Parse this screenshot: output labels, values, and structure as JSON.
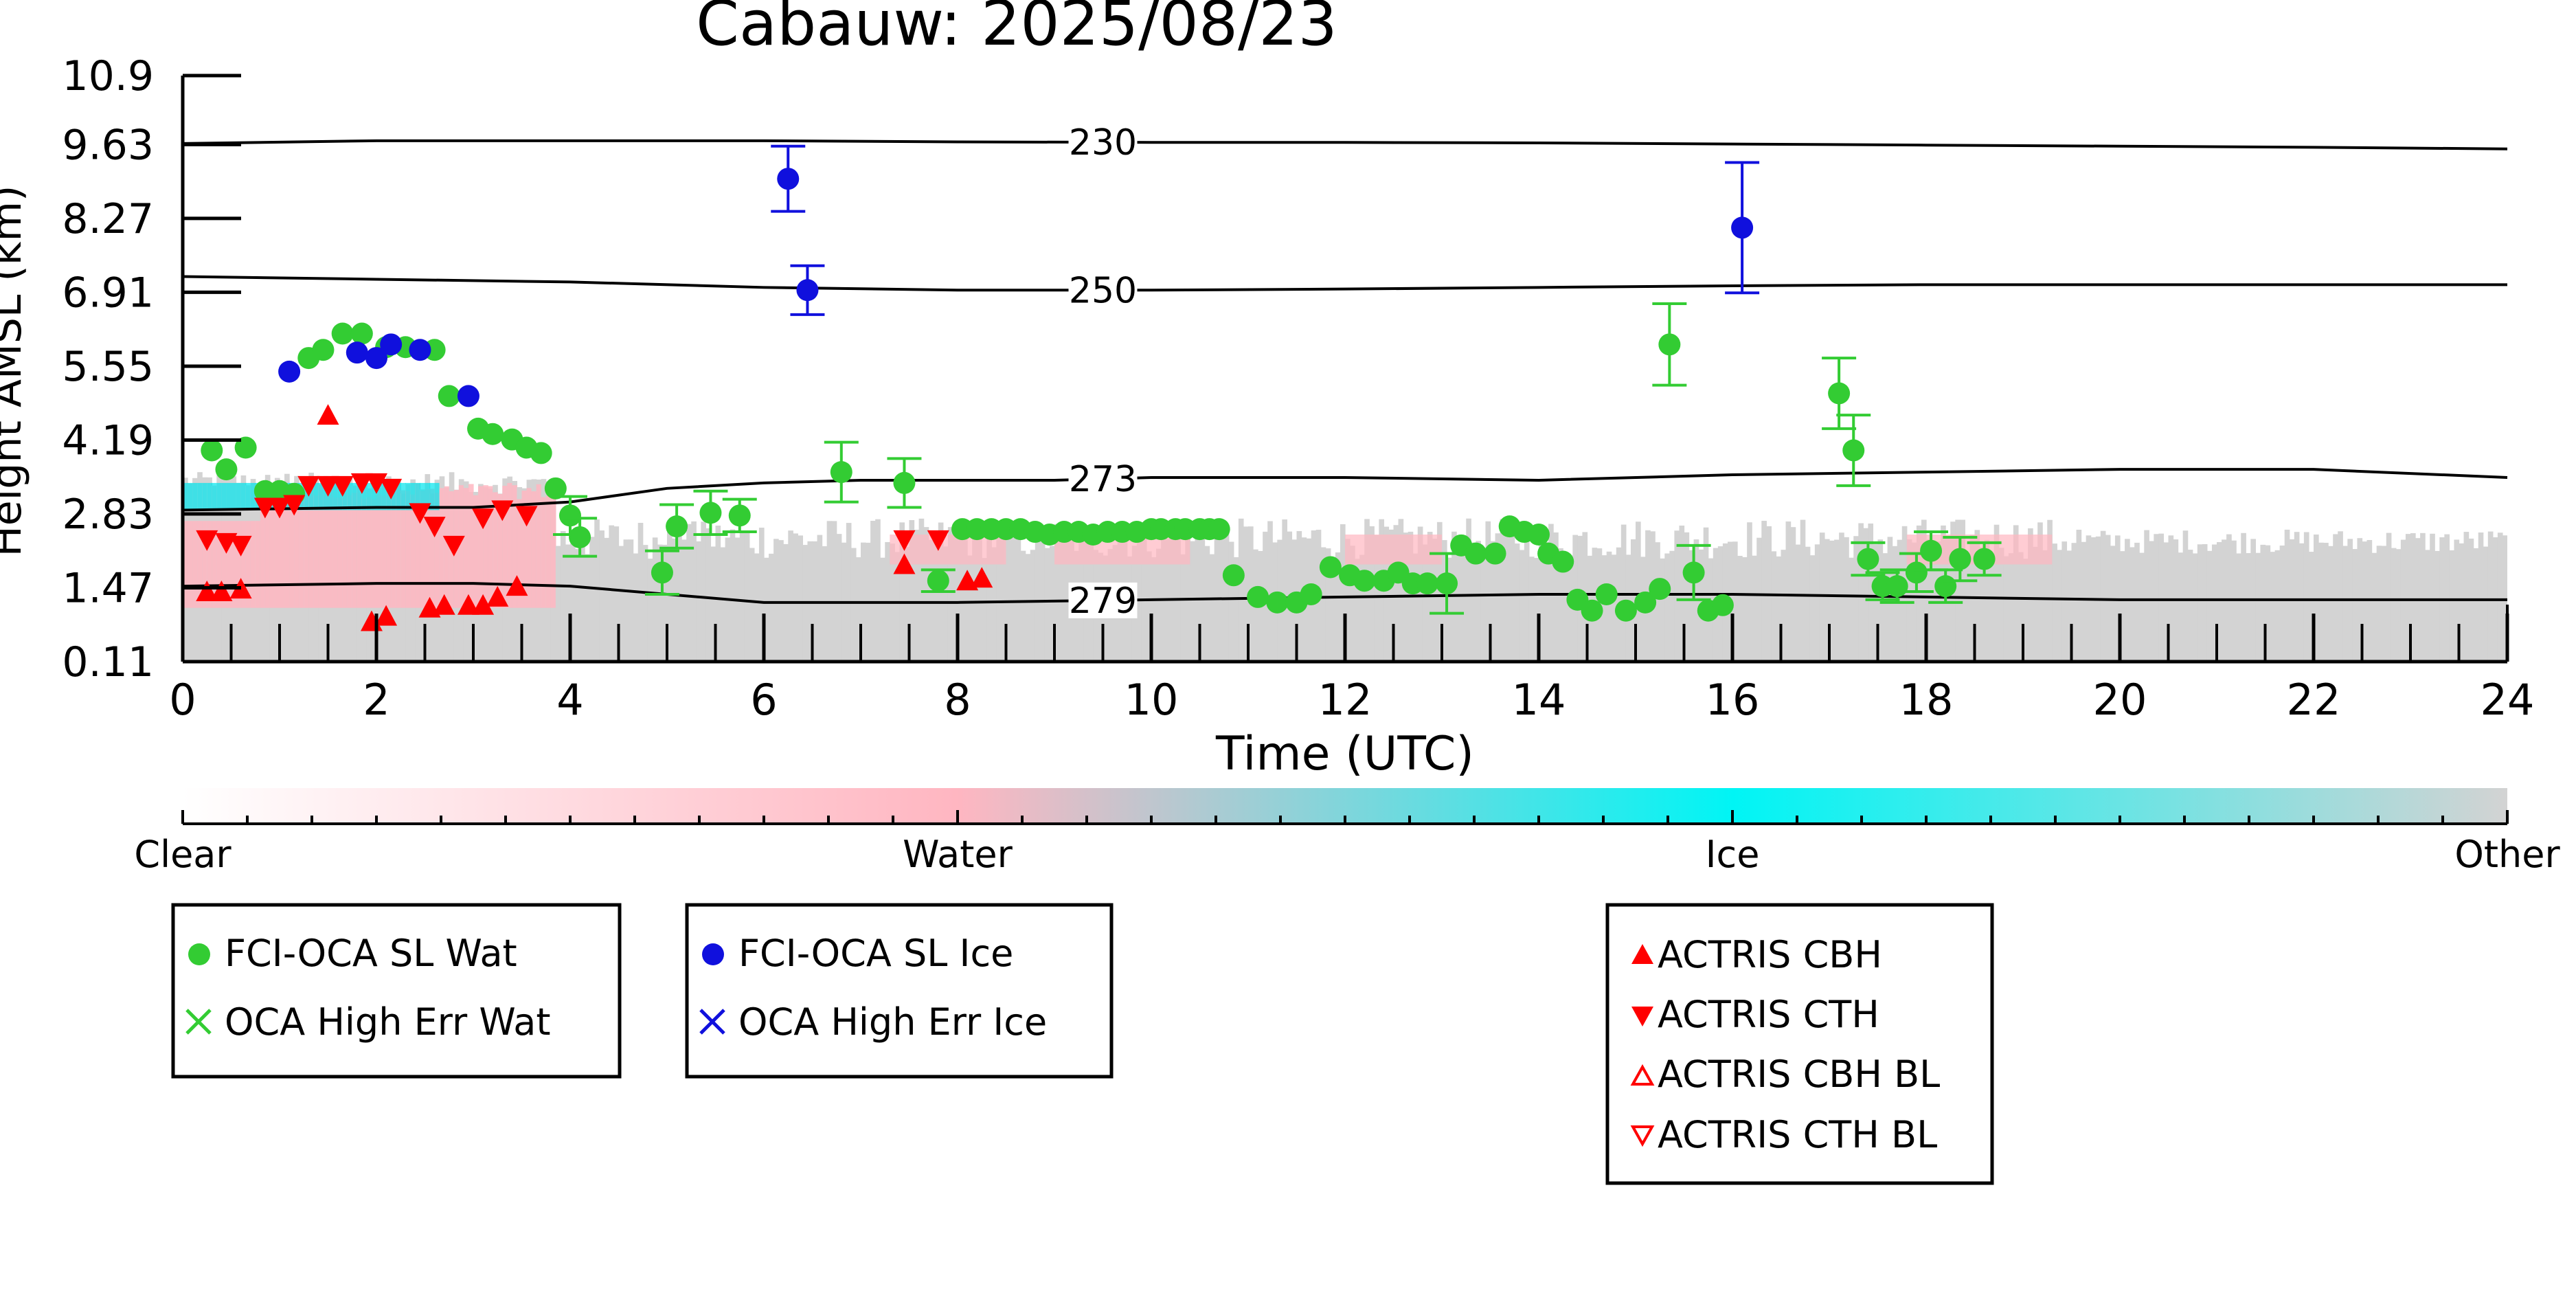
{
  "chart_data": {
    "type": "scatter",
    "title": "Cabauw: 2025/08/23",
    "xlabel": "Time (UTC)",
    "ylabel": "Height AMSL (km)",
    "xlim": [
      0,
      24
    ],
    "ylim": [
      0.11,
      10.9
    ],
    "x_ticks": [
      0,
      2,
      4,
      6,
      8,
      10,
      12,
      14,
      16,
      18,
      20,
      22,
      24
    ],
    "y_ticks": [
      "0.11",
      "1.47",
      "2.83",
      "4.19",
      "5.55",
      "6.91",
      "8.27",
      "9.63",
      "10.9"
    ],
    "colorbar": {
      "labels": [
        "Clear",
        "Water",
        "Ice",
        "Other"
      ],
      "colors": [
        "#ffffff",
        "#ffb6c1",
        "#00ffff",
        "#d3d3d3"
      ]
    },
    "isotherms": [
      {
        "label": "230",
        "x": [
          0,
          2,
          4,
          6,
          8,
          10,
          12,
          14,
          16,
          18,
          20,
          22,
          24
        ],
        "y": [
          9.65,
          9.7,
          9.7,
          9.7,
          9.68,
          9.67,
          9.67,
          9.66,
          9.64,
          9.62,
          9.6,
          9.58,
          9.55
        ]
      },
      {
        "label": "250",
        "x": [
          0,
          2,
          4,
          6,
          8,
          10,
          12,
          14,
          16,
          18,
          20,
          22,
          24
        ],
        "y": [
          7.2,
          7.15,
          7.1,
          7.0,
          6.95,
          6.95,
          6.97,
          7.0,
          7.03,
          7.05,
          7.05,
          7.05,
          7.05
        ]
      },
      {
        "label": "273",
        "x": [
          0,
          2,
          3,
          4,
          5,
          6,
          7,
          8,
          9,
          10,
          12,
          14,
          16,
          18,
          20,
          22,
          24
        ],
        "y": [
          2.9,
          2.95,
          2.95,
          3.05,
          3.3,
          3.4,
          3.45,
          3.45,
          3.45,
          3.5,
          3.5,
          3.45,
          3.55,
          3.6,
          3.65,
          3.65,
          3.5
        ]
      },
      {
        "label": "279",
        "x": [
          0,
          2,
          3,
          4,
          5,
          6,
          8,
          10,
          12,
          14,
          16,
          18,
          20,
          22,
          24
        ],
        "y": [
          1.5,
          1.55,
          1.55,
          1.5,
          1.35,
          1.2,
          1.2,
          1.25,
          1.3,
          1.35,
          1.35,
          1.3,
          1.25,
          1.25,
          1.25
        ]
      }
    ],
    "series": [
      {
        "name": "FCI-OCA SL Wat",
        "color": "#33cc33",
        "marker": "circle",
        "x": [
          0.3,
          0.45,
          0.65,
          0.85,
          1.0,
          1.15,
          1.3,
          1.45,
          1.65,
          1.85,
          2.1,
          2.3,
          2.6,
          2.75,
          3.05,
          3.2,
          3.4,
          3.55,
          3.7,
          3.85,
          4.0,
          4.1,
          4.95,
          5.1,
          5.45,
          5.75,
          6.8,
          7.45,
          7.8,
          8.05,
          8.2,
          8.35,
          8.5,
          8.65,
          8.8,
          8.95,
          9.1,
          9.25,
          9.4,
          9.55,
          9.7,
          9.85,
          10.0,
          10.1,
          10.25,
          10.35,
          10.5,
          10.6,
          10.7,
          10.85,
          11.1,
          11.3,
          11.5,
          11.65,
          11.85,
          12.05,
          12.2,
          12.4,
          12.55,
          12.7,
          12.85,
          13.05,
          13.2,
          13.35,
          13.55,
          13.7,
          13.85,
          14.0,
          14.1,
          14.25,
          14.4,
          14.55,
          14.7,
          14.9,
          15.1,
          15.25,
          15.6,
          15.75,
          15.9,
          17.1,
          17.25,
          17.4,
          17.55,
          17.7,
          17.9,
          18.05,
          18.2,
          18.35,
          18.6,
          15.35
        ],
        "y": [
          4.0,
          3.65,
          4.05,
          3.25,
          3.25,
          3.2,
          5.7,
          5.85,
          6.15,
          6.15,
          5.9,
          5.9,
          5.85,
          5.0,
          4.4,
          4.3,
          4.2,
          4.05,
          3.95,
          3.3,
          2.8,
          2.4,
          1.75,
          2.6,
          2.85,
          2.8,
          3.6,
          3.4,
          1.6,
          2.55,
          2.55,
          2.55,
          2.55,
          2.55,
          2.5,
          2.45,
          2.5,
          2.5,
          2.45,
          2.5,
          2.5,
          2.5,
          2.55,
          2.55,
          2.55,
          2.55,
          2.55,
          2.55,
          2.55,
          1.7,
          1.3,
          1.2,
          1.2,
          1.35,
          1.85,
          1.7,
          1.6,
          1.6,
          1.75,
          1.55,
          1.55,
          1.55,
          2.25,
          2.1,
          2.1,
          2.6,
          2.5,
          2.45,
          2.1,
          1.95,
          1.25,
          1.05,
          1.35,
          1.05,
          1.2,
          1.45,
          1.75,
          1.05,
          1.15,
          5.05,
          4.0,
          2.0,
          1.5,
          1.5,
          1.75,
          2.15,
          1.5,
          2.0,
          2.0,
          5.95
        ],
        "err": [
          0,
          0,
          0,
          0,
          0,
          0,
          0,
          0,
          0,
          0,
          0,
          0,
          0,
          0,
          0,
          0,
          0,
          0,
          0,
          0,
          0.35,
          0.35,
          0.4,
          0.4,
          0.4,
          0.3,
          0.55,
          0.45,
          0.2,
          0,
          0,
          0,
          0,
          0,
          0,
          0,
          0,
          0,
          0,
          0,
          0,
          0,
          0,
          0,
          0,
          0,
          0,
          0,
          0,
          0,
          0,
          0,
          0,
          0,
          0,
          0,
          0,
          0,
          0,
          0,
          0,
          0.55,
          0,
          0,
          0,
          0,
          0,
          0,
          0,
          0,
          0,
          0,
          0,
          0,
          0,
          0,
          0.5,
          0,
          0,
          0.65,
          0.65,
          0.3,
          0.25,
          0.3,
          0.35,
          0.35,
          0.3,
          0.4,
          0.3,
          0.75
        ]
      },
      {
        "name": "OCA High Err Wat",
        "color": "#33cc33",
        "marker": "x",
        "x": [],
        "y": []
      },
      {
        "name": "FCI-OCA SL Ice",
        "color": "#1010dd",
        "marker": "circle",
        "x": [
          1.1,
          1.8,
          2.0,
          2.15,
          2.45,
          2.95,
          6.25,
          6.45,
          16.1
        ],
        "y": [
          5.45,
          5.8,
          5.7,
          5.95,
          5.85,
          5.0,
          9.0,
          6.95,
          8.1
        ],
        "err": [
          0,
          0,
          0,
          0,
          0,
          0,
          0.6,
          0.45,
          1.2
        ]
      },
      {
        "name": "OCA High Err Ice",
        "color": "#1010dd",
        "marker": "x",
        "x": [],
        "y": []
      },
      {
        "name": "ACTRIS CBH",
        "color": "#ff0000",
        "marker": "triangle-up",
        "x": [
          0.25,
          0.4,
          0.6,
          1.5,
          1.95,
          2.1,
          2.55,
          2.7,
          2.95,
          3.1,
          3.25,
          3.45,
          7.45,
          8.1,
          8.25
        ],
        "y": [
          1.4,
          1.4,
          1.45,
          4.65,
          0.85,
          0.95,
          1.1,
          1.15,
          1.15,
          1.15,
          1.3,
          1.5,
          1.9,
          1.6,
          1.65
        ]
      },
      {
        "name": "ACTRIS CTH",
        "color": "#ff0000",
        "marker": "triangle-down",
        "x": [
          0.25,
          0.45,
          0.6,
          0.85,
          1.0,
          1.15,
          1.3,
          1.5,
          1.65,
          1.85,
          2.0,
          2.15,
          2.45,
          2.6,
          2.8,
          3.1,
          3.3,
          3.55,
          7.45,
          7.8
        ],
        "y": [
          2.35,
          2.3,
          2.25,
          2.95,
          2.95,
          3.0,
          3.35,
          3.35,
          3.35,
          3.4,
          3.4,
          3.3,
          2.85,
          2.6,
          2.25,
          2.75,
          2.9,
          2.8,
          2.35,
          2.35
        ]
      },
      {
        "name": "ACTRIS CBH BL",
        "color": "#ff0000",
        "marker": "triangle-up-open",
        "x": [],
        "y": []
      },
      {
        "name": "ACTRIS CTH BL",
        "color": "#ff0000",
        "marker": "triangle-down-open",
        "x": [],
        "y": []
      }
    ],
    "legends": [
      [
        "FCI-OCA SL Wat",
        "OCA High Err Wat"
      ],
      [
        "FCI-OCA SL Ice",
        "OCA High Err Ice"
      ],
      [
        "ACTRIS CBH",
        "ACTRIS CTH",
        "ACTRIS CBH BL",
        "ACTRIS CTH BL"
      ]
    ]
  }
}
